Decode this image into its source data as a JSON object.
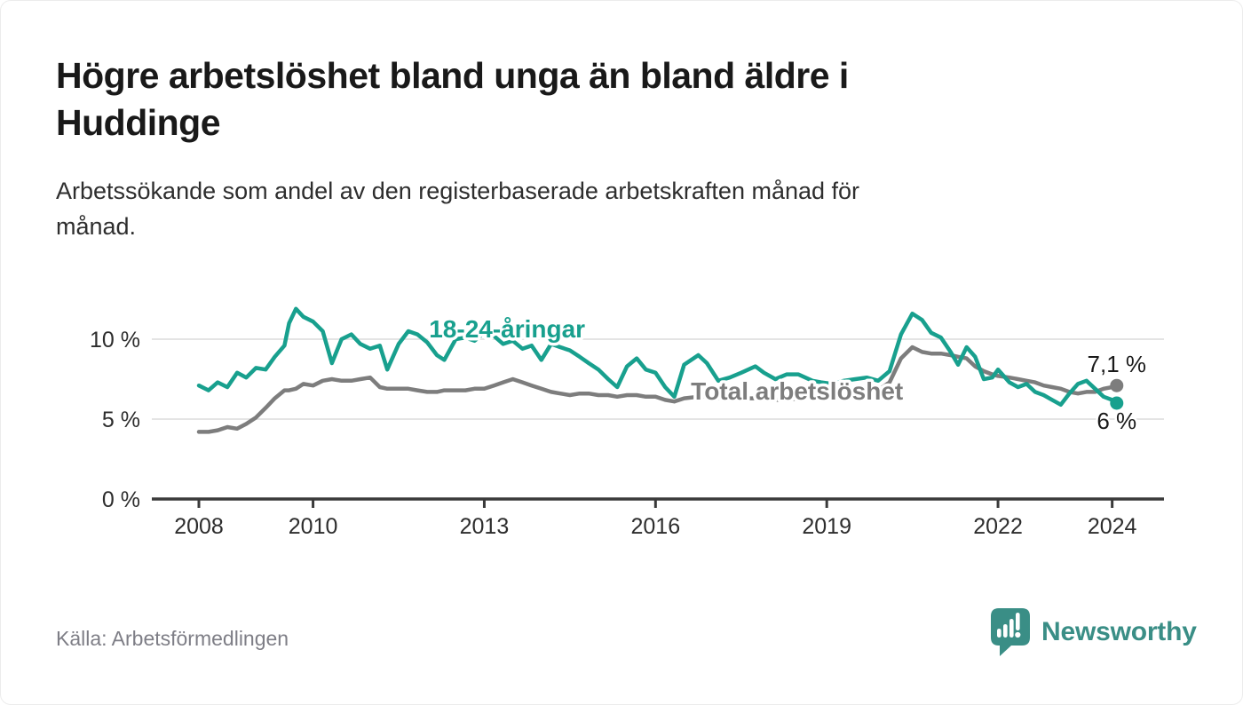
{
  "header": {
    "title_lines": [
      "Högre arbetslöshet bland unga än bland äldre i",
      "Huddinge"
    ],
    "subtitle_lines": [
      "Arbetssökande som andel av den registerbaserade arbetskraften månad för",
      "månad."
    ]
  },
  "footer": {
    "source": "Källa: Arbetsförmedlingen",
    "brand": "Newsworthy",
    "brand_icon": "bar-chart-speech-bubble-icon"
  },
  "colors": {
    "young": "#18a08e",
    "total": "#7d7d7d",
    "grid": "#e4e4e4",
    "axis": "#3a3a3a",
    "tick_text": "#2d2d2d",
    "annotation_text": "#1a1a1a",
    "brand": "#3a8e86"
  },
  "chart_data": {
    "type": "line",
    "title": "Högre arbetslöshet bland unga än bland äldre i Huddinge",
    "subtitle": "Arbetssökande som andel av den registerbaserade arbetskraften månad för månad.",
    "xlabel": "",
    "ylabel": "",
    "grid": "horizontal",
    "legend_position": "inline-labels",
    "xlim": [
      2007.2,
      2024.9
    ],
    "ylim": [
      0,
      12.5
    ],
    "xticks": [
      2008,
      2010,
      2013,
      2016,
      2019,
      2022,
      2024
    ],
    "xtick_labels": [
      "2008",
      "2010",
      "2013",
      "2016",
      "2019",
      "2022",
      "2024"
    ],
    "yticks": [
      0,
      5,
      10
    ],
    "ytick_labels": [
      "0 %",
      "5 %",
      "10 %"
    ],
    "x": [
      2008.0,
      2008.17,
      2008.33,
      2008.5,
      2008.67,
      2008.83,
      2009.0,
      2009.17,
      2009.33,
      2009.5,
      2009.58,
      2009.7,
      2009.83,
      2010.0,
      2010.17,
      2010.33,
      2010.5,
      2010.67,
      2010.83,
      2011.0,
      2011.17,
      2011.3,
      2011.5,
      2011.67,
      2011.83,
      2012.0,
      2012.17,
      2012.3,
      2012.5,
      2012.67,
      2012.83,
      2013.0,
      2013.17,
      2013.33,
      2013.5,
      2013.67,
      2013.83,
      2014.0,
      2014.17,
      2014.33,
      2014.5,
      2014.67,
      2014.83,
      2015.0,
      2015.17,
      2015.33,
      2015.5,
      2015.67,
      2015.83,
      2016.0,
      2016.17,
      2016.33,
      2016.5,
      2016.75,
      2016.9,
      2017.1,
      2017.3,
      2017.5,
      2017.75,
      2017.9,
      2018.1,
      2018.3,
      2018.5,
      2018.75,
      2018.9,
      2019.1,
      2019.3,
      2019.5,
      2019.7,
      2019.9,
      2020.1,
      2020.3,
      2020.5,
      2020.67,
      2020.83,
      2021.0,
      2021.17,
      2021.3,
      2021.45,
      2021.6,
      2021.75,
      2021.9,
      2022.0,
      2022.2,
      2022.35,
      2022.5,
      2022.65,
      2022.8,
      2022.95,
      2023.1,
      2023.25,
      2023.4,
      2023.55,
      2023.7,
      2023.85,
      2024.0,
      2024.08
    ],
    "series": [
      {
        "key": "young",
        "name": "18-24-åringar",
        "color": "#18a08e",
        "values": [
          7.1,
          6.8,
          7.3,
          7.0,
          7.9,
          7.6,
          8.2,
          8.1,
          8.9,
          9.6,
          11.0,
          11.9,
          11.4,
          11.1,
          10.5,
          8.5,
          10.0,
          10.3,
          9.7,
          9.4,
          9.6,
          8.1,
          9.7,
          10.5,
          10.3,
          9.8,
          9.0,
          8.7,
          10.0,
          10.1,
          9.9,
          10.4,
          10.2,
          9.7,
          9.9,
          9.4,
          9.6,
          8.7,
          9.7,
          9.5,
          9.3,
          8.9,
          8.5,
          8.1,
          7.5,
          7.0,
          8.3,
          8.8,
          8.1,
          7.9,
          7.0,
          6.4,
          8.4,
          9.0,
          8.5,
          7.4,
          7.6,
          7.9,
          8.3,
          7.9,
          7.5,
          7.8,
          7.8,
          7.4,
          7.3,
          7.2,
          7.4,
          7.5,
          7.6,
          7.4,
          8.0,
          10.3,
          11.6,
          11.2,
          10.4,
          10.1,
          9.2,
          8.4,
          9.5,
          8.9,
          7.5,
          7.6,
          8.1,
          7.3,
          7.0,
          7.2,
          6.7,
          6.5,
          6.2,
          5.9,
          6.6,
          7.2,
          7.4,
          6.9,
          6.4,
          6.2,
          6.0
        ]
      },
      {
        "key": "total",
        "name": "Total arbetslöshet",
        "color": "#7d7d7d",
        "values": [
          4.2,
          4.2,
          4.3,
          4.5,
          4.4,
          4.7,
          5.1,
          5.7,
          6.3,
          6.8,
          6.8,
          6.9,
          7.2,
          7.1,
          7.4,
          7.5,
          7.4,
          7.4,
          7.5,
          7.6,
          7.0,
          6.9,
          6.9,
          6.9,
          6.8,
          6.7,
          6.7,
          6.8,
          6.8,
          6.8,
          6.9,
          6.9,
          7.1,
          7.3,
          7.5,
          7.3,
          7.1,
          6.9,
          6.7,
          6.6,
          6.5,
          6.6,
          6.6,
          6.5,
          6.5,
          6.4,
          6.5,
          6.5,
          6.4,
          6.4,
          6.2,
          6.1,
          6.3,
          6.4,
          6.4,
          6.3,
          6.3,
          6.3,
          6.3,
          6.3,
          6.2,
          6.2,
          6.3,
          6.3,
          6.3,
          6.4,
          6.4,
          6.5,
          6.6,
          6.8,
          7.3,
          8.8,
          9.5,
          9.2,
          9.1,
          9.1,
          9.0,
          8.9,
          8.8,
          8.3,
          8.0,
          7.8,
          7.7,
          7.6,
          7.5,
          7.4,
          7.3,
          7.1,
          7.0,
          6.9,
          6.7,
          6.6,
          6.7,
          6.7,
          6.9,
          7.0,
          7.1
        ]
      }
    ],
    "series_labels": [
      {
        "text": "18-24-åringar",
        "series": "young",
        "x": 2013.4,
        "y": 10.6,
        "anchor": "middle"
      },
      {
        "text": "Total arbetslöshet",
        "series": "total",
        "x": 2016.62,
        "y": 6.72,
        "anchor": "start"
      }
    ],
    "annotations": [
      {
        "text": "7,1 %",
        "series": "total",
        "x": 2024.08,
        "y": 7.1,
        "placement": "above"
      },
      {
        "text": "6 %",
        "series": "young",
        "x": 2024.08,
        "y": 6.0,
        "placement": "below"
      }
    ]
  }
}
